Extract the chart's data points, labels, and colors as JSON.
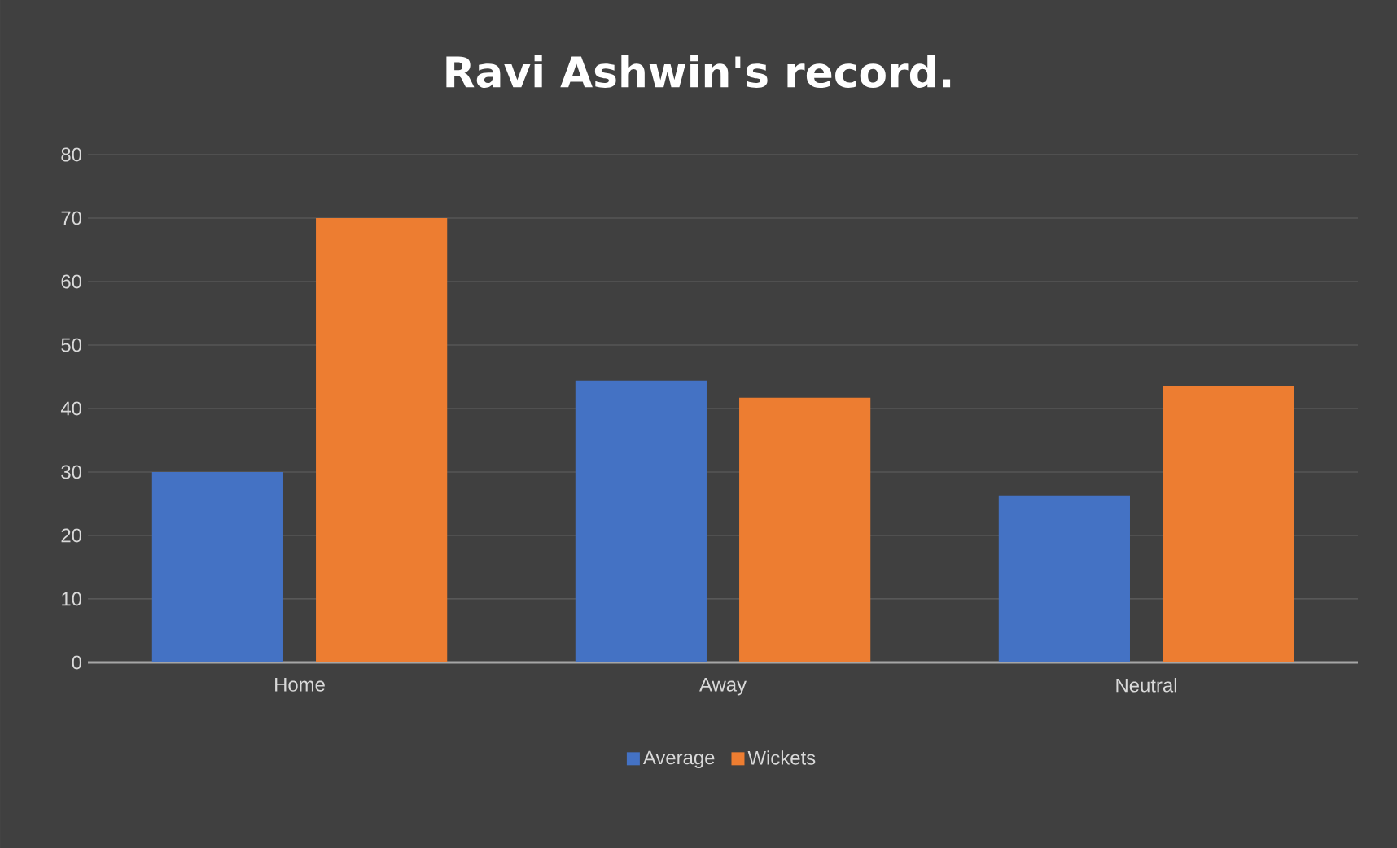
{
  "chart_data": {
    "type": "bar",
    "title": "Ravi Ashwin's record.",
    "categories": [
      "Home",
      "Away",
      "Neutral"
    ],
    "series": [
      {
        "name": "Average",
        "color": "#4472c4",
        "values": [
          30,
          44.4,
          26.3
        ]
      },
      {
        "name": "Wickets",
        "color": "#ed7d31",
        "values": [
          70,
          41.7,
          43.6
        ]
      }
    ],
    "ylim": [
      0,
      80
    ],
    "yticks": [
      0,
      10,
      20,
      30,
      40,
      50,
      60,
      70,
      80
    ],
    "grid": "y",
    "legend": "bottom"
  }
}
